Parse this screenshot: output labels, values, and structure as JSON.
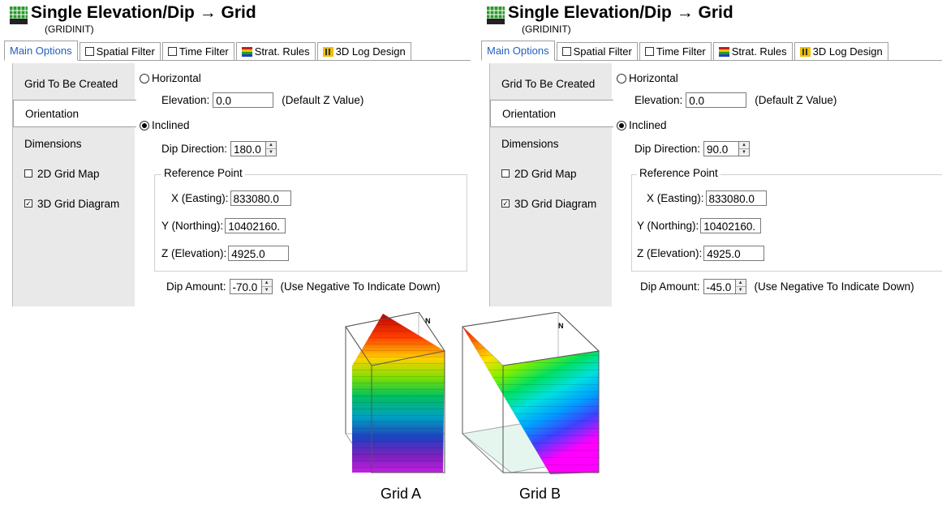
{
  "panels": [
    {
      "title": "Single Elevation/Dip → Grid",
      "subtitle": "(GRIDINIT)",
      "tabs": [
        "Main Options",
        "Spatial Filter",
        "Time Filter",
        "Strat. Rules",
        "3D Log Design"
      ],
      "side": [
        "Grid To Be Created",
        "Orientation",
        "Dimensions",
        "2D Grid Map",
        "3D Grid Diagram"
      ],
      "horizontal_label": "Horizontal",
      "elevation_label": "Elevation:",
      "elevation_value": "0.0",
      "default_z": "(Default Z Value)",
      "inclined_label": "Inclined",
      "dip_direction_label": "Dip Direction:",
      "dip_direction_value": "180.0",
      "ref_point_label": "Reference Point",
      "x_label": "X (Easting):",
      "x_value": "833080.0",
      "y_label": "Y (Northing):",
      "y_value": "10402160.",
      "z_label": "Z (Elevation):",
      "z_value": "4925.0",
      "dip_amount_label": "Dip Amount:",
      "dip_amount_value": "-70.0",
      "dip_note": "(Use Negative To Indicate Down)"
    },
    {
      "title": "Single Elevation/Dip → Grid",
      "subtitle": "(GRIDINIT)",
      "tabs": [
        "Main Options",
        "Spatial Filter",
        "Time Filter",
        "Strat. Rules",
        "3D Log Design"
      ],
      "side": [
        "Grid To Be Created",
        "Orientation",
        "Dimensions",
        "2D Grid Map",
        "3D Grid Diagram"
      ],
      "horizontal_label": "Horizontal",
      "elevation_label": "Elevation:",
      "elevation_value": "0.0",
      "default_z": "(Default Z Value)",
      "inclined_label": "Inclined",
      "dip_direction_label": "Dip Direction:",
      "dip_direction_value": "90.0",
      "ref_point_label": "Reference Point",
      "x_label": "X (Easting):",
      "x_value": "833080.0",
      "y_label": "Y (Northing):",
      "y_value": "10402160.",
      "z_label": "Z (Elevation):",
      "z_value": "4925.0",
      "dip_amount_label": "Dip Amount:",
      "dip_amount_value": "-45.0",
      "dip_note": "(Use Negative To Indicate Down)"
    }
  ],
  "figures": {
    "north": "N",
    "grid_a": "Grid A",
    "grid_b": "Grid B"
  },
  "state": {
    "selected_tab": "Main Options",
    "selected_side_item": "Orientation",
    "orientation_mode": "Inclined",
    "checked": {
      "2D Grid Map": false,
      "3D Grid Diagram": true,
      "Spatial Filter": false,
      "Time Filter": false
    }
  },
  "icons": [
    "grid-app-icon",
    "strat-rules-icon",
    "3d-log-design-icon"
  ],
  "colors": {
    "active_tab": "#2060c0",
    "sidebar": "#e9e9e9"
  }
}
